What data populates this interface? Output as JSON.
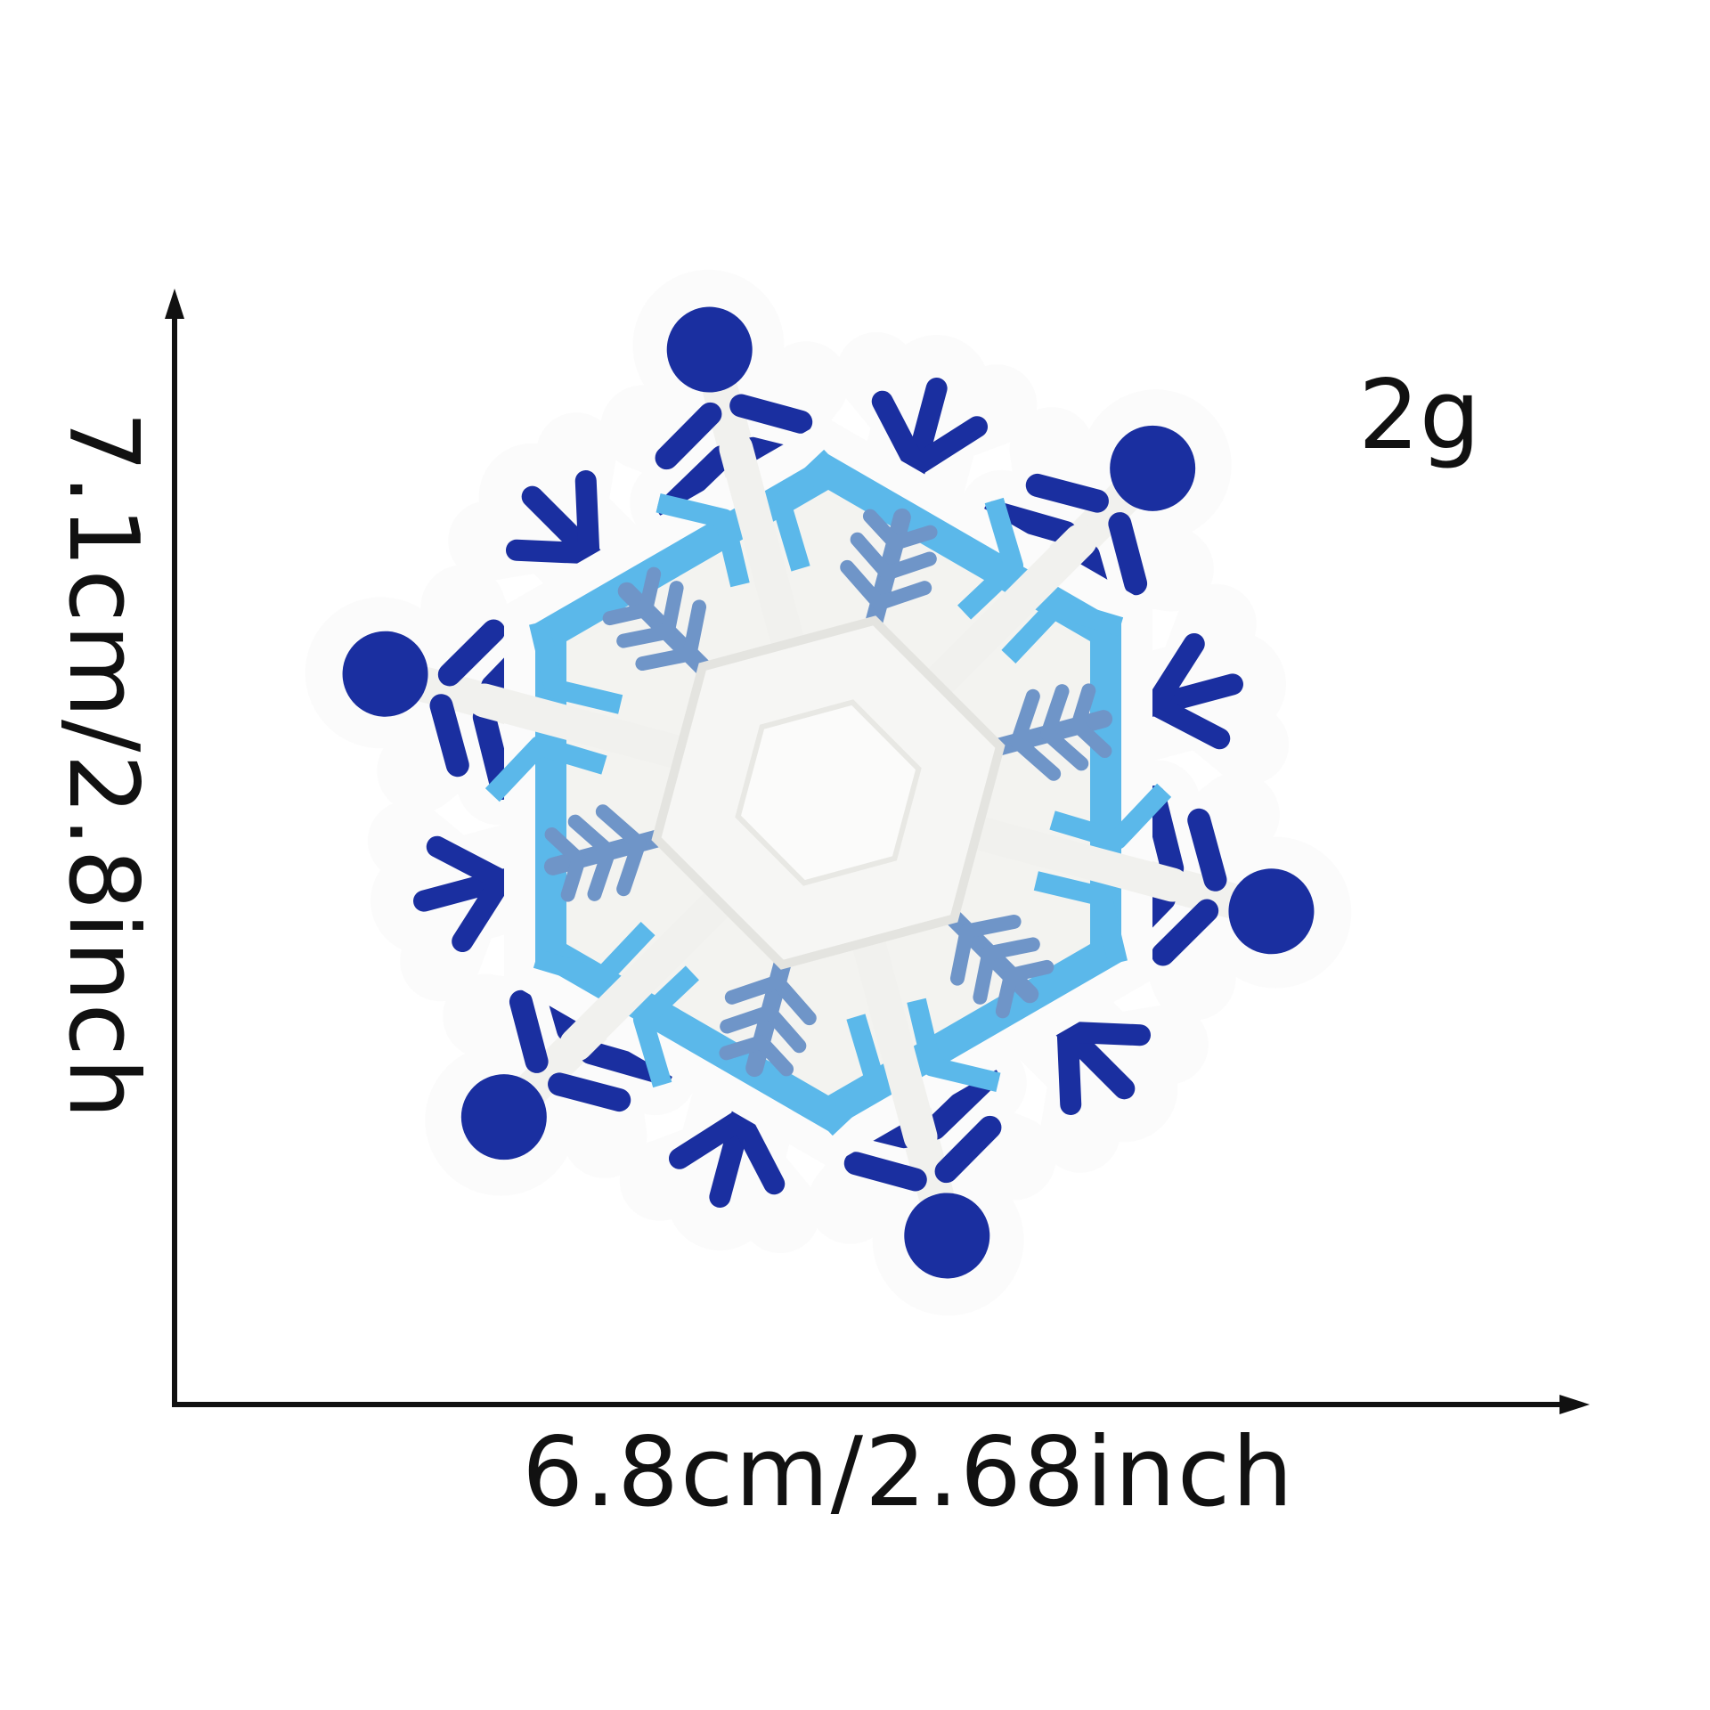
{
  "product": {
    "width_label": "6.8cm/2.68inch",
    "height_label": "7.1cm/2.8inch",
    "weight_label": "2g"
  },
  "image": {
    "subject": "snowflake-embroidered-patch",
    "colors": {
      "navy": "#1a2fa0",
      "light_blue": "#5bb8ea",
      "steel_blue": "#6f95c8",
      "thread_white": "#f3f3f0",
      "border_white": "#fbfbfb",
      "ink": "#111111"
    }
  }
}
